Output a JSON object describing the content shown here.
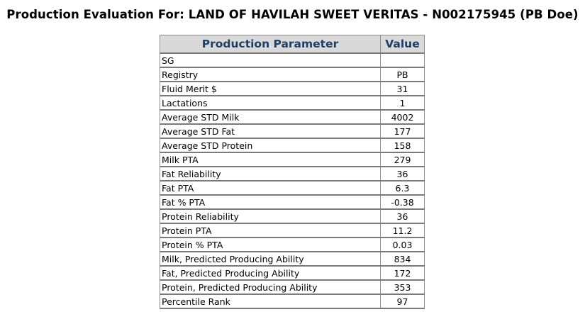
{
  "page": {
    "title": "Production Evaluation For: LAND OF HAVILAH SWEET VERITAS - N002175945 (PB Doe)"
  },
  "table": {
    "headers": {
      "parameter": "Production Parameter",
      "value": "Value"
    },
    "rows": [
      {
        "parameter": "SG",
        "value": ""
      },
      {
        "parameter": "Registry",
        "value": "PB"
      },
      {
        "parameter": "Fluid Merit $",
        "value": "31"
      },
      {
        "parameter": "Lactations",
        "value": "1"
      },
      {
        "parameter": "Average STD Milk",
        "value": "4002"
      },
      {
        "parameter": "Average STD Fat",
        "value": "177"
      },
      {
        "parameter": "Average STD Protein",
        "value": "158"
      },
      {
        "parameter": "Milk PTA",
        "value": "279"
      },
      {
        "parameter": "Fat Reliability",
        "value": "36"
      },
      {
        "parameter": "Fat PTA",
        "value": "6.3"
      },
      {
        "parameter": "Fat % PTA",
        "value": "-0.38"
      },
      {
        "parameter": "Protein Reliability",
        "value": "36"
      },
      {
        "parameter": "Protein PTA",
        "value": "11.2"
      },
      {
        "parameter": "Protein % PTA",
        "value": "0.03"
      },
      {
        "parameter": "Milk, Predicted Producing Ability",
        "value": "834"
      },
      {
        "parameter": "Fat, Predicted Producing Ability",
        "value": "172"
      },
      {
        "parameter": "Protein, Predicted Producing Ability",
        "value": "353"
      },
      {
        "parameter": "Percentile Rank",
        "value": "97"
      }
    ]
  },
  "colors": {
    "header_background": "#d9d9d9",
    "header_text": "#1f3f66",
    "border": "#8c8c8c"
  }
}
